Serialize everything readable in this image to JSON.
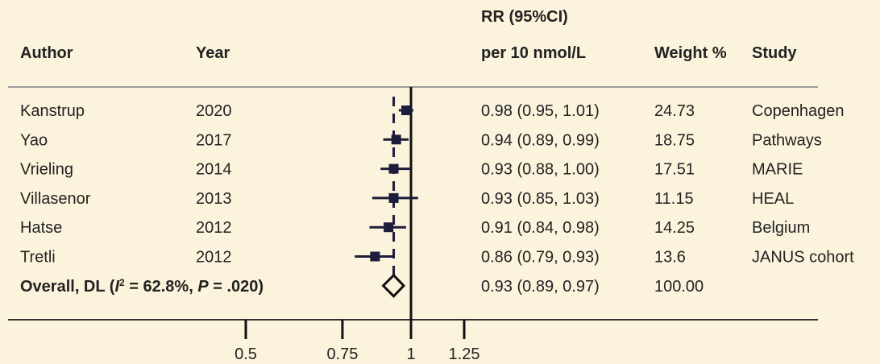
{
  "chart_data": {
    "type": "forest",
    "headers": {
      "author": "Author",
      "year": "Year",
      "ci_line1": "RR (95%CI)",
      "ci_line2": "per 10 nmol/L",
      "weight": "Weight %",
      "study": "Study"
    },
    "rows": [
      {
        "author": "Kanstrup",
        "year": 2020,
        "rr": 0.98,
        "lower": 0.95,
        "upper": 1.01,
        "ci_label": "0.98 (0.95, 1.01)",
        "weight": 24.73,
        "study": "Copenhagen"
      },
      {
        "author": "Yao",
        "year": 2017,
        "rr": 0.94,
        "lower": 0.89,
        "upper": 0.99,
        "ci_label": "0.94 (0.89, 0.99)",
        "weight": 18.75,
        "study": "Pathways"
      },
      {
        "author": "Vrieling",
        "year": 2014,
        "rr": 0.93,
        "lower": 0.88,
        "upper": 1.0,
        "ci_label": "0.93 (0.88, 1.00)",
        "weight": 17.51,
        "study": "MARIE"
      },
      {
        "author": "Villasenor",
        "year": 2013,
        "rr": 0.93,
        "lower": 0.85,
        "upper": 1.03,
        "ci_label": "0.93 (0.85, 1.03)",
        "weight": 11.15,
        "study": "HEAL"
      },
      {
        "author": "Hatse",
        "year": 2012,
        "rr": 0.91,
        "lower": 0.84,
        "upper": 0.98,
        "ci_label": "0.91 (0.84, 0.98)",
        "weight": 14.25,
        "study": "Belgium"
      },
      {
        "author": "Tretli",
        "year": 2012,
        "rr": 0.86,
        "lower": 0.79,
        "upper": 0.93,
        "ci_label": "0.86 (0.79, 0.93)",
        "weight": 13.6,
        "study": "JANUS cohort"
      }
    ],
    "overall": {
      "label": [
        "Overall, DL (",
        "I",
        "2",
        " = 62.8%, ",
        "P",
        " = .020)"
      ],
      "rr": 0.93,
      "lower": 0.89,
      "upper": 0.97,
      "ci_label": "0.93 (0.89, 0.97)",
      "weight": {
        "value": 100,
        "label": "100.00"
      }
    },
    "log_scale": true,
    "xlim": [
      0.5,
      1.25
    ],
    "xticks": [
      0.5,
      0.75,
      1,
      1.25
    ],
    "color": "#1d1d3b"
  }
}
